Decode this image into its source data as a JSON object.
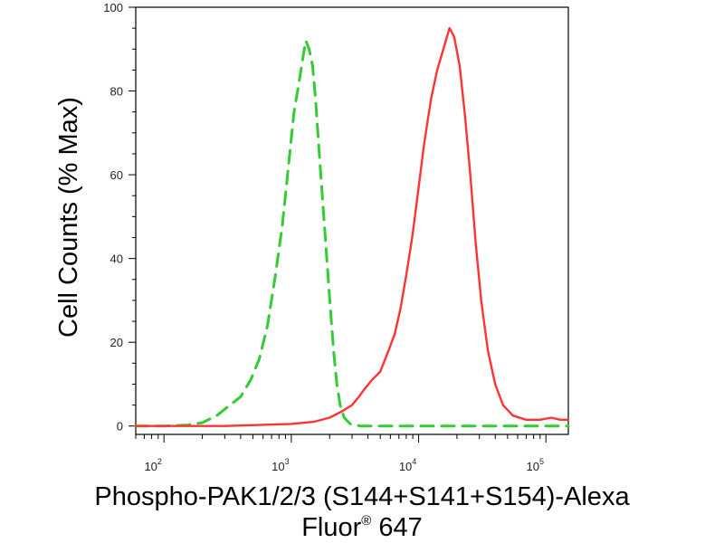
{
  "chart_data": {
    "type": "line",
    "title": "",
    "xlabel_line1": "Phospho-PAK1/2/3 (S144+S141+S154)-Alexa",
    "xlabel_line2_prefix": "Fluor",
    "xlabel_line2_mark": "®",
    "xlabel_line2_suffix": " 647",
    "ylabel": "Cell Counts (% Max)",
    "x_scale": "log",
    "xlim": [
      60,
      150000
    ],
    "ylim": [
      -2,
      100
    ],
    "grid": false,
    "legend": "none",
    "x_ticks": [
      {
        "base": "10",
        "exp": "2",
        "value": 100
      },
      {
        "base": "10",
        "exp": "3",
        "value": 1000
      },
      {
        "base": "10",
        "exp": "4",
        "value": 10000
      },
      {
        "base": "10",
        "exp": "5",
        "value": 100000
      }
    ],
    "y_ticks": [
      {
        "label": "0",
        "value": 0
      },
      {
        "label": "20",
        "value": 20
      },
      {
        "label": "40",
        "value": 40
      },
      {
        "label": "60",
        "value": 60
      },
      {
        "label": "80",
        "value": 80
      },
      {
        "label": "100",
        "value": 100
      }
    ],
    "series": [
      {
        "color": "#33cc33",
        "dash": "dashed",
        "points": [
          [
            60,
            0
          ],
          [
            100,
            0
          ],
          [
            150,
            0.2
          ],
          [
            200,
            0.8
          ],
          [
            260,
            2.5
          ],
          [
            330,
            5
          ],
          [
            400,
            7
          ],
          [
            480,
            11
          ],
          [
            560,
            16
          ],
          [
            650,
            24
          ],
          [
            750,
            36
          ],
          [
            850,
            48
          ],
          [
            950,
            62
          ],
          [
            1050,
            75
          ],
          [
            1150,
            82
          ],
          [
            1250,
            89
          ],
          [
            1300,
            92
          ],
          [
            1380,
            90
          ],
          [
            1470,
            86
          ],
          [
            1550,
            78
          ],
          [
            1650,
            66
          ],
          [
            1780,
            52
          ],
          [
            1900,
            40
          ],
          [
            2030,
            28
          ],
          [
            2150,
            18
          ],
          [
            2280,
            10
          ],
          [
            2420,
            5
          ],
          [
            2600,
            2
          ],
          [
            2900,
            0.5
          ],
          [
            3500,
            0
          ],
          [
            10000,
            0
          ],
          [
            150000,
            0
          ]
        ]
      },
      {
        "color": "#ff3333",
        "dash": "solid",
        "points": [
          [
            60,
            0
          ],
          [
            100,
            0
          ],
          [
            300,
            0
          ],
          [
            1000,
            0.5
          ],
          [
            1500,
            1
          ],
          [
            2000,
            2
          ],
          [
            2500,
            3.5
          ],
          [
            3000,
            5
          ],
          [
            3400,
            7
          ],
          [
            3800,
            9
          ],
          [
            4300,
            11
          ],
          [
            5000,
            13
          ],
          [
            5800,
            18
          ],
          [
            6500,
            22
          ],
          [
            7200,
            28
          ],
          [
            8000,
            36
          ],
          [
            9000,
            46
          ],
          [
            10000,
            57
          ],
          [
            11000,
            67
          ],
          [
            12500,
            78
          ],
          [
            14000,
            85
          ],
          [
            16000,
            91
          ],
          [
            17500,
            95
          ],
          [
            19000,
            93
          ],
          [
            21000,
            86
          ],
          [
            23000,
            75
          ],
          [
            25500,
            60
          ],
          [
            28000,
            44
          ],
          [
            31000,
            30
          ],
          [
            35000,
            18
          ],
          [
            40000,
            10
          ],
          [
            46000,
            5
          ],
          [
            55000,
            2.5
          ],
          [
            70000,
            1.5
          ],
          [
            90000,
            1.5
          ],
          [
            110000,
            2
          ],
          [
            130000,
            1.5
          ],
          [
            150000,
            1.5
          ]
        ]
      }
    ]
  }
}
